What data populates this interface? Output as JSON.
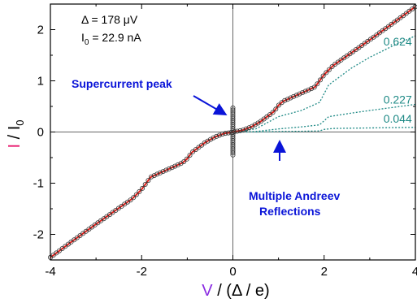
{
  "chart_data": {
    "type": "scatter",
    "xlim": [
      -4,
      4
    ],
    "ylim": [
      -2.5,
      2.5
    ],
    "xticks": [
      "-4",
      "-2",
      "0",
      "2",
      "4"
    ],
    "yticks": [
      "2",
      "1",
      "0",
      "-1",
      "-2"
    ],
    "xlabel": {
      "symbol": "V",
      "rest": " / (Δ / e)"
    },
    "ylabel": {
      "symbol": "I",
      "rest": " / I",
      "sub": "0"
    },
    "params": {
      "delta": "Δ = 178 μV",
      "i0_main": "I",
      "i0_sub": "0",
      "i0_rest": " = 22.9 nA"
    },
    "annotations": {
      "supercurrent": "Supercurrent peak",
      "mar_line1": "Multiple Andreev",
      "mar_line2": "Reflections"
    },
    "colors": {
      "data_marker": "#333333",
      "fit": "#e0201a",
      "transmission": "#1f8a86",
      "annotation": "#0a14d8",
      "i_symbol": "#e8196e",
      "v_symbol": "#8a2be2"
    },
    "measured": {
      "x": [
        -4.0,
        -3.5,
        -3.0,
        -2.6,
        -2.2,
        -2.0,
        -1.8,
        -1.4,
        -1.1,
        -1.0,
        -0.9,
        -0.6,
        -0.4,
        -0.2,
        -0.05,
        0.0,
        0.05,
        0.2,
        0.4,
        0.6,
        0.9,
        1.0,
        1.1,
        1.4,
        1.8,
        2.0,
        2.2,
        2.6,
        3.0,
        3.5,
        4.0
      ],
      "y": [
        -2.45,
        -2.12,
        -1.8,
        -1.55,
        -1.3,
        -1.12,
        -0.88,
        -0.72,
        -0.6,
        -0.52,
        -0.4,
        -0.2,
        -0.1,
        -0.03,
        -0.01,
        0.0,
        0.01,
        0.03,
        0.1,
        0.2,
        0.4,
        0.52,
        0.6,
        0.72,
        0.88,
        1.12,
        1.3,
        1.55,
        1.8,
        2.12,
        2.45
      ]
    },
    "supercurrent_spike": {
      "x": 0.0,
      "y_min": -0.45,
      "y_max": 0.48
    },
    "transmission_curves": [
      {
        "label": "0.624",
        "x": [
          0.0,
          0.5,
          1.0,
          1.5,
          1.9,
          2.1,
          2.6,
          3.0,
          3.5,
          4.0
        ],
        "y": [
          0.0,
          0.06,
          0.3,
          0.42,
          0.58,
          0.92,
          1.25,
          1.46,
          1.68,
          1.88
        ]
      },
      {
        "label": "0.227",
        "x": [
          0.0,
          0.5,
          1.0,
          1.5,
          1.9,
          2.1,
          2.6,
          3.0,
          3.5,
          4.0
        ],
        "y": [
          0.0,
          0.01,
          0.06,
          0.1,
          0.14,
          0.3,
          0.37,
          0.42,
          0.48,
          0.54
        ]
      },
      {
        "label": "0.044",
        "x": [
          0.0,
          0.5,
          1.0,
          1.5,
          1.9,
          2.0,
          2.2,
          2.6,
          3.0,
          3.5,
          4.0
        ],
        "y": [
          0.0,
          0.0,
          0.01,
          0.015,
          0.02,
          0.05,
          0.07,
          0.075,
          0.08,
          0.085,
          0.09
        ]
      }
    ]
  }
}
